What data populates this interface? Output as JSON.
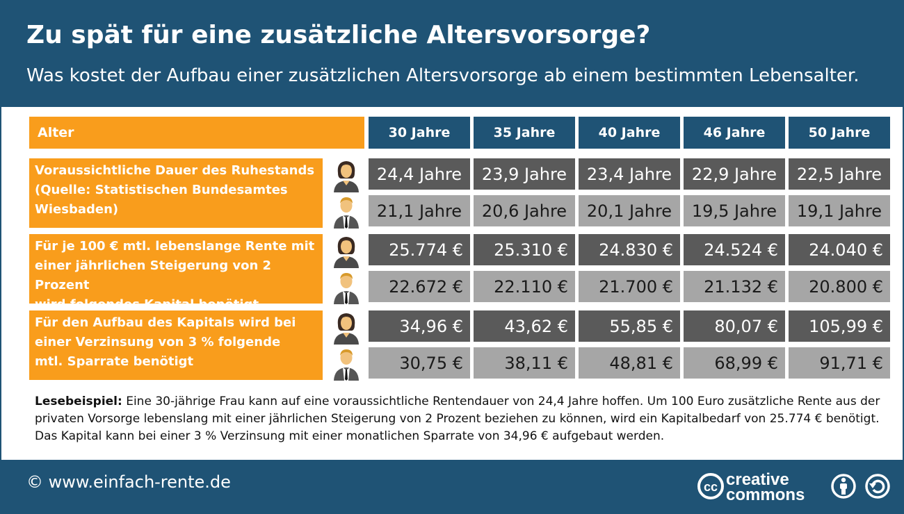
{
  "header": {
    "title": "Zu spät für eine zusätzliche Altersvorsorge?",
    "subtitle": "Was kostet der Aufbau einer zusätzlichen Altersvorsorge ab einem bestimmten Lebensalter."
  },
  "table": {
    "age_label": "Alter",
    "columns": [
      "30 Jahre",
      "35 Jahre",
      "40 Jahre",
      "46 Jahre",
      "50 Jahre"
    ],
    "row_labels": [
      "Voraussichtliche Dauer des Ruhestands\n(Quelle: Statistischen Bundesamtes\nWiesbaden)",
      "Für je 100 € mtl. lebenslange Rente mit\neiner jährlichen Steigerung von 2 Prozent\nwird folgendes Kapital benötigt",
      "Für den Aufbau des Kapitals wird bei\neiner Verzinsung von 3 % folgende\nmtl. Sparrate benötigt"
    ],
    "rows": [
      {
        "female": [
          "24,4 Jahre",
          "23,9 Jahre",
          "23,4 Jahre",
          "22,9 Jahre",
          "22,5 Jahre"
        ],
        "male": [
          "21,1 Jahre",
          "20,6 Jahre",
          "20,1 Jahre",
          "19,5 Jahre",
          "19,1 Jahre"
        ]
      },
      {
        "female": [
          "25.774 €",
          "25.310 €",
          "24.830 €",
          "24.524 €",
          "24.040 €"
        ],
        "male": [
          "22.672 €",
          "22.110 €",
          "21.700 €",
          "21.132 €",
          "20.800 €"
        ]
      },
      {
        "female": [
          "34,96 €",
          "43,62 €",
          "55,85 €",
          "80,07 €",
          "105,99 €"
        ],
        "male": [
          "30,75 €",
          "38,11 €",
          "48,81 €",
          "68,99 €",
          "91,71 €"
        ]
      }
    ]
  },
  "chart_data": {
    "type": "table",
    "categories": [
      "30 Jahre",
      "35 Jahre",
      "40 Jahre",
      "46 Jahre",
      "50 Jahre"
    ],
    "series": [
      {
        "values": [
          24.4,
          23.9,
          23.4,
          22.9,
          22.5
        ]
      },
      {
        "values": [
          21.1,
          20.6,
          20.1,
          19.5,
          19.1
        ]
      },
      {
        "values": [
          25774,
          25310,
          24830,
          24524,
          24040
        ]
      },
      {
        "values": [
          22672,
          22110,
          21700,
          21132,
          20800
        ]
      },
      {
        "values": [
          34.96,
          43.62,
          55.85,
          80.07,
          105.99
        ]
      },
      {
        "values": [
          30.75,
          38.11,
          48.81,
          68.99,
          91.71
        ]
      }
    ]
  },
  "note": {
    "lead": "Lesebeispiel:",
    "text": " Eine 30-jährige Frau kann auf eine voraussichtliche Rentendauer von 24,4 Jahre hoffen. Um 100 Euro zusätzliche Rente aus der privaten Vorsorge lebenslang mit einer jährlichen Steigerung von 2 Prozent beziehen zu können, wird ein Kapitalbedarf von 25.774 € benötigt. Das Kapital kann bei einer 3 % Verzinsung mit einer monatlichen Sparrate von 34,96 € aufgebaut werden."
  },
  "footer": {
    "copyright": "© www.einfach-rente.de",
    "cc_line1": "creative",
    "cc_line2": "commons"
  },
  "colors": {
    "navy": "#1f5375",
    "orange": "#f99d1c",
    "dark_cell": "#5a5a5a",
    "light_cell": "#a6a6a6"
  }
}
